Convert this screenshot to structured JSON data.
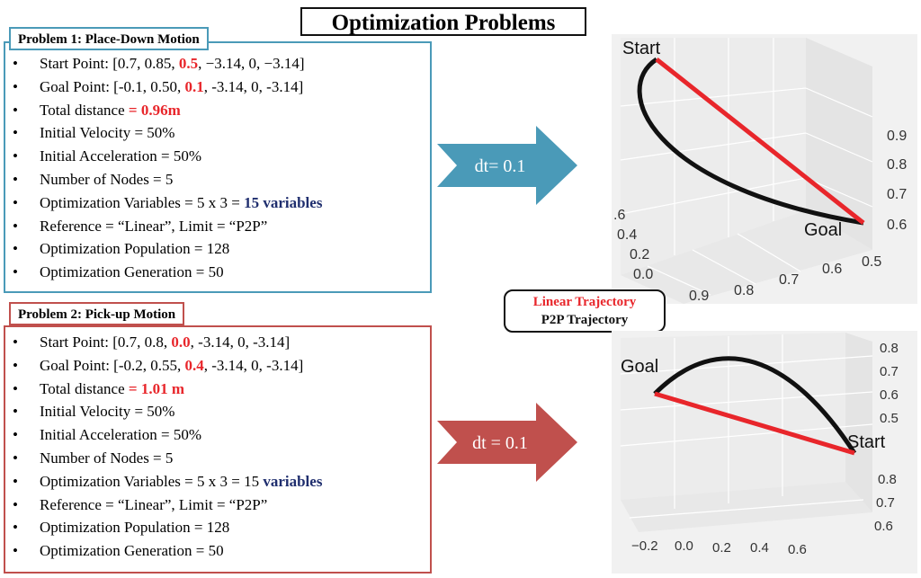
{
  "title": "Optimization Problems",
  "problem1": {
    "title": "Problem 1: Place-Down Motion",
    "items": [
      {
        "pre": "Start Point: [0.7, 0.85, ",
        "hl": "0.5",
        "post": ", −3.14, 0, −3.14]"
      },
      {
        "pre": "Goal Point: [-0.1, 0.50, ",
        "hl": "0.1",
        "post": ", -3.14, 0, -3.14]"
      },
      {
        "pre": "Total distance ",
        "hl": "= 0.96m",
        "post": ""
      },
      {
        "pre": "Initial Velocity = 50%",
        "hl": "",
        "post": ""
      },
      {
        "pre": "Initial Acceleration = 50%",
        "hl": "",
        "post": ""
      },
      {
        "pre": "Number of Nodes = 5",
        "hl": "",
        "post": ""
      },
      {
        "pre": "Optimization Variables = 5 x 3 = ",
        "hl2": "15 variables",
        "post": ""
      },
      {
        "pre": "Reference = “Linear”, Limit = “P2P”",
        "hl": "",
        "post": ""
      },
      {
        "pre": "Optimization Population = 128",
        "hl": "",
        "post": ""
      },
      {
        "pre": "Optimization Generation = 50",
        "hl": "",
        "post": ""
      }
    ],
    "arrow_label": "dt= 0.1",
    "arrow_color": "#4a9ab8"
  },
  "problem2": {
    "title": "Problem 2: Pick-up Motion",
    "items": [
      {
        "pre": "Start Point: [0.7, 0.8, ",
        "hl": "0.0",
        "post": ", -3.14, 0, -3.14]"
      },
      {
        "pre": "Goal Point: [-0.2, 0.55, ",
        "hl": "0.4",
        "post": ", -3.14, 0, -3.14]"
      },
      {
        "pre": "Total distance ",
        "hl": "= 1.01 m",
        "post": ""
      },
      {
        "pre": "Initial Velocity = 50%",
        "hl": "",
        "post": ""
      },
      {
        "pre": "Initial Acceleration = 50%",
        "hl": "",
        "post": ""
      },
      {
        "pre": "Number of Nodes = 5",
        "hl": "",
        "post": ""
      },
      {
        "pre": "Optimization Variables = 5 x 3 = 15 ",
        "hl2": "variables",
        "post": ""
      },
      {
        "pre": "Reference = “Linear”, Limit = “P2P”",
        "hl": "",
        "post": ""
      },
      {
        "pre": "Optimization Population = 128",
        "hl": "",
        "post": ""
      },
      {
        "pre": "Optimization Generation = 50",
        "hl": "",
        "post": ""
      }
    ],
    "arrow_label": "dt = 0.1",
    "arrow_color": "#c0504d"
  },
  "bullet": "•",
  "legend": {
    "linear": "Linear Trajectory",
    "p2p": "P2P Trajectory"
  },
  "plot1": {
    "start_label": "Start",
    "goal_label": "Goal",
    "z_ticks": [
      "0.9",
      "0.8",
      "0.7",
      "0.6"
    ],
    "y_ticks": [
      ".6",
      "0.4",
      "0.2",
      "0.0"
    ],
    "x_ticks": [
      "0.9",
      "0.8",
      "0.7",
      "0.6",
      "0.5"
    ]
  },
  "plot2": {
    "start_label": "Start",
    "goal_label": "Goal",
    "z_ticks": [
      "0.8",
      "0.7",
      "0.6",
      "0.5"
    ],
    "y_ticks": [
      "0.8",
      "0.7",
      "0.6"
    ],
    "x_ticks": [
      "−0.2",
      "0.0",
      "0.2",
      "0.4",
      "0.6"
    ]
  }
}
